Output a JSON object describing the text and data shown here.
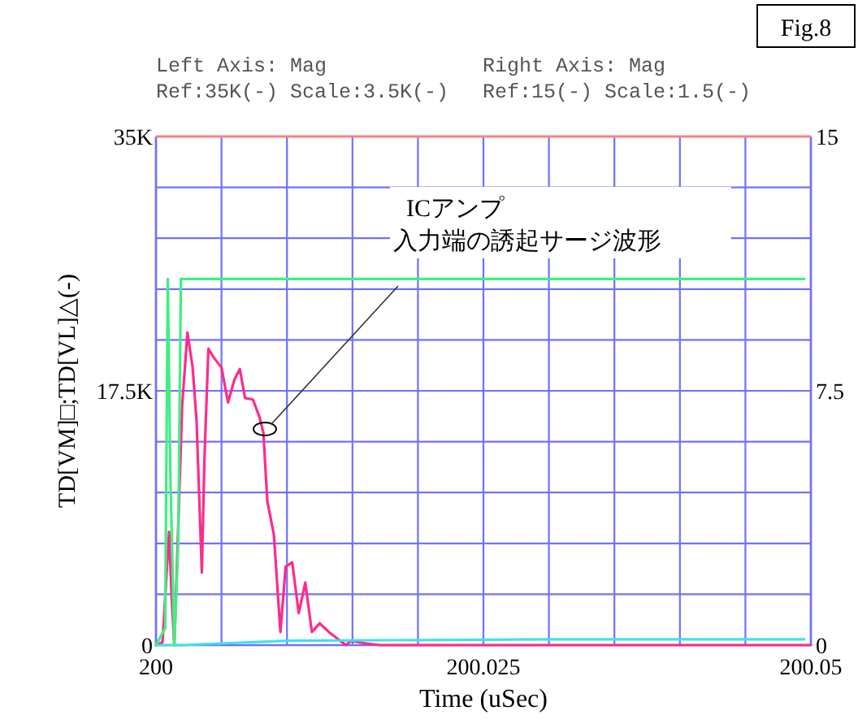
{
  "chart_data": {
    "type": "line",
    "title": "Fig.8",
    "xlabel": "Time (uSec)",
    "ylabel": "TD[VM]□;TD[VL]△(-)",
    "annotations": [
      "Left Axis: Mag",
      "Ref:35K(-) Scale:3.5K(-)",
      "Right Axis: Mag",
      "Ref:15(-) Scale:1.5(-)",
      "ICアンプ",
      "入力端の誘起サージ波形"
    ],
    "xlim": [
      200,
      200.05
    ],
    "xticks": [
      200,
      {
        "value": 200.005,
        "label": null
      },
      {
        "value": 200.01,
        "label": null
      },
      {
        "value": 200.015,
        "label": null
      },
      {
        "value": 200.02,
        "label": null
      },
      200.025,
      {
        "value": 200.03,
        "label": null
      },
      {
        "value": 200.035,
        "label": null
      },
      {
        "value": 200.04,
        "label": null
      },
      {
        "value": 200.045,
        "label": null
      },
      200.05
    ],
    "ylim": [
      0,
      35000
    ],
    "yticks": [
      0,
      {
        "value": 3500,
        "label": null
      },
      {
        "value": 7000,
        "label": null
      },
      {
        "value": 10500,
        "label": null
      },
      {
        "value": 14000,
        "label": null
      },
      {
        "value": 17500,
        "label": "17.5K"
      },
      {
        "value": 21000,
        "label": null
      },
      {
        "value": 24500,
        "label": null
      },
      {
        "value": 28000,
        "label": null
      },
      {
        "value": 31500,
        "label": null
      },
      {
        "value": 35000,
        "label": "35K"
      }
    ],
    "y2lim": [
      0,
      15
    ],
    "y2ticks": [
      0,
      7.5,
      15
    ],
    "grid": true,
    "line_style": "solid",
    "series": [
      {
        "color": "#ff2a8a",
        "x": [
          200,
          200.0005,
          200.001,
          200.0012,
          200.0014,
          200.002,
          200.0024,
          200.0028,
          200.0031,
          200.0035,
          200.0037,
          200.004,
          200.0044,
          200.005,
          200.0055,
          200.006,
          200.0064,
          200.0068,
          200.0074,
          200.0079,
          200.0082,
          200.0085,
          200.009,
          200.0095,
          200.0099,
          200.0104,
          200.0109,
          200.0114,
          200.0119,
          200.0125,
          200.0132,
          200.0145,
          200.0149,
          200.0161,
          200.0171,
          200.05
        ],
        "values": [
          0,
          200,
          7800,
          3200,
          0,
          16500,
          21500,
          19100,
          15400,
          5000,
          12800,
          20400,
          19800,
          19100,
          16700,
          18300,
          19000,
          17000,
          16900,
          15700,
          14600,
          9900,
          7600,
          900,
          5400,
          5700,
          2200,
          4300,
          900,
          1500,
          900,
          0,
          300,
          100,
          0,
          0
        ]
      },
      {
        "color": "#40e0f0",
        "x": [
          200,
          200.002,
          200.01,
          200.03,
          200.0495
        ],
        "values": [
          0,
          0,
          300,
          400,
          400
        ]
      },
      {
        "color": "#40ee80",
        "axis": "y2",
        "x": [
          200,
          200.0007,
          200.0009,
          200.0011,
          200.0014,
          200.0017,
          200.0019,
          200.0495
        ],
        "values": [
          0,
          0.5,
          10.8,
          5,
          0,
          3,
          10.8,
          10.8
        ]
      }
    ]
  }
}
